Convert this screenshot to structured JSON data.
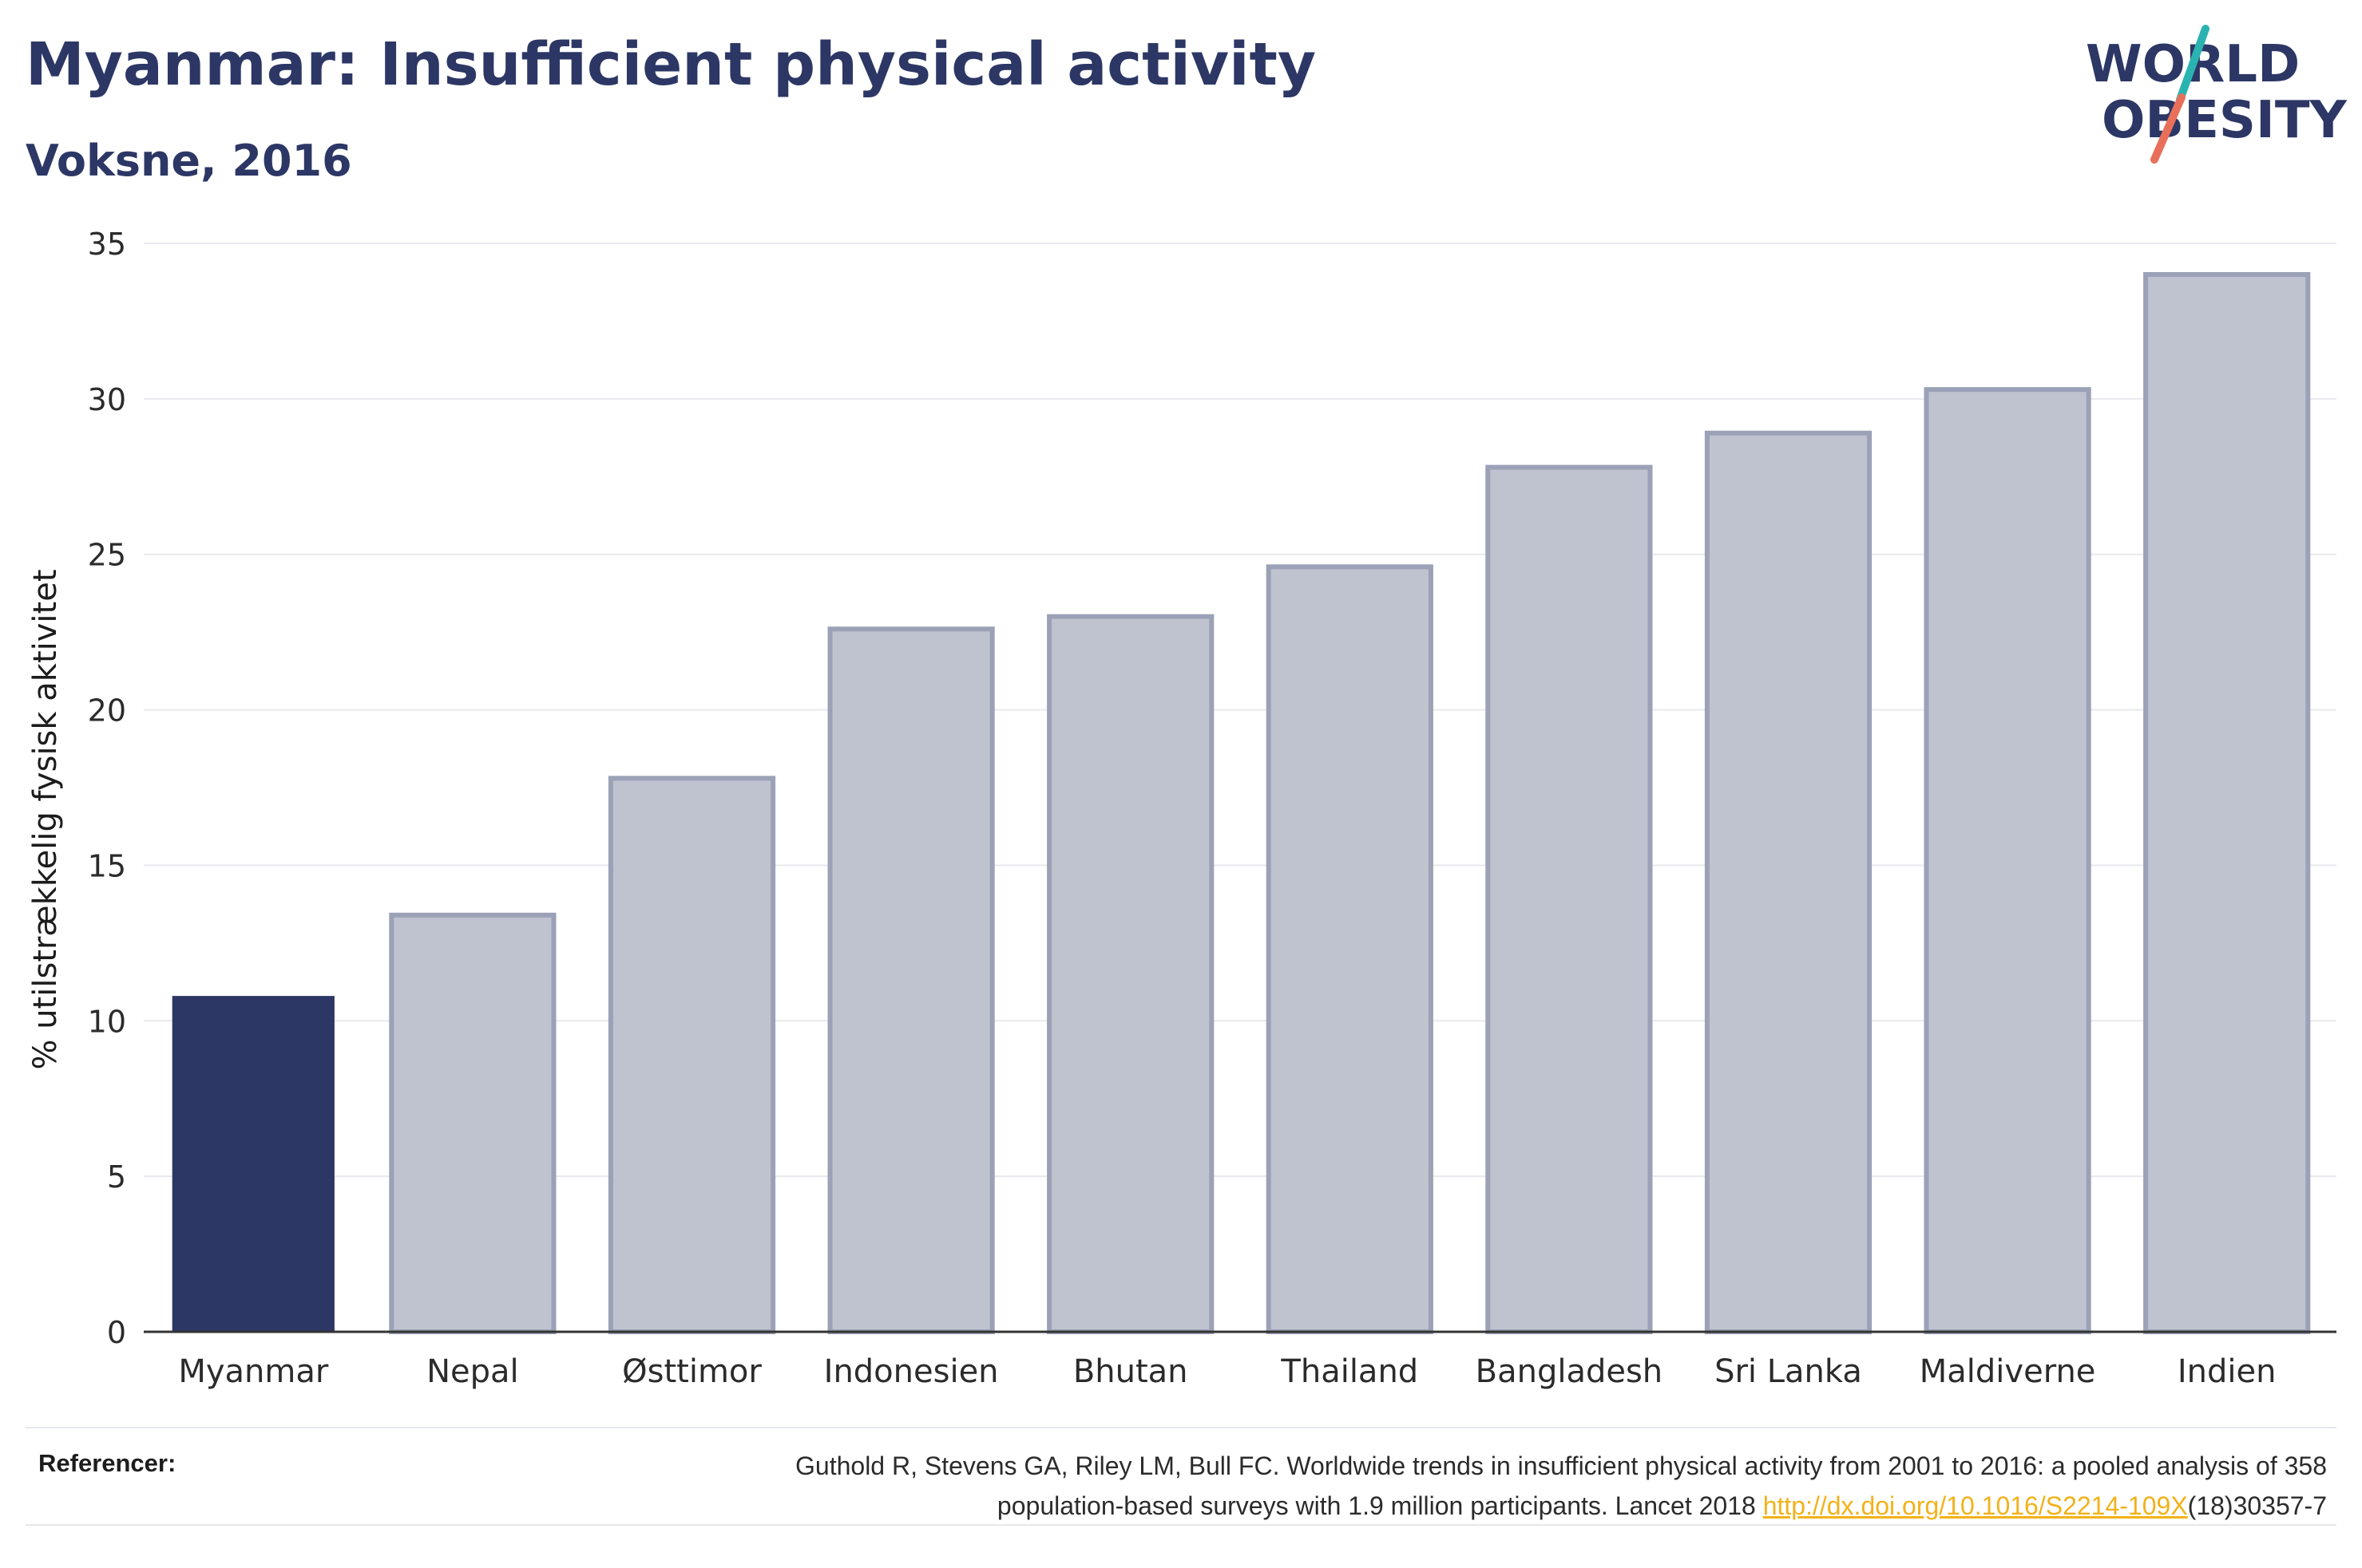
{
  "header": {
    "title": "Myanmar: Insufficient physical activity",
    "subtitle": "Voksne, 2016"
  },
  "logo": {
    "line1": "WORLD",
    "line2": "OBESITY",
    "colors": {
      "text": "#2c3765",
      "slash_teal": "#2ab3b1",
      "slash_red": "#e8705a"
    }
  },
  "chart_data": {
    "type": "bar",
    "title": "Myanmar: Insufficient physical activity",
    "subtitle": "Voksne, 2016",
    "xlabel": "",
    "ylabel": "% utilstrækkelig fysisk aktivitet",
    "ylim": [
      0,
      35
    ],
    "yticks": [
      0,
      5,
      10,
      15,
      20,
      25,
      30,
      35
    ],
    "grid": true,
    "categories": [
      "Myanmar",
      "Nepal",
      "Østtimor",
      "Indonesien",
      "Bhutan",
      "Thailand",
      "Bangladesh",
      "Sri Lanka",
      "Maldiverne",
      "Indien"
    ],
    "values": [
      10.8,
      13.4,
      17.8,
      22.6,
      23.0,
      24.6,
      27.8,
      28.9,
      30.3,
      34.0
    ],
    "highlight": "Myanmar",
    "colors": {
      "highlight": "#2c3765",
      "bar_fill": "#bfc3cf",
      "bar_stroke": "#9ba1b6",
      "grid": "#e8e9ee",
      "axis": "#333333",
      "tick_text": "#2b2b2b"
    }
  },
  "footer": {
    "label": "Referencer:",
    "reference_text_1": "Guthold R, Stevens GA, Riley LM, Bull FC. Worldwide trends in insufficient physical activity from 2001 to 2016: a pooled analysis of 358",
    "reference_text_2": "population-based surveys with 1.9 million participants. Lancet 2018 ",
    "reference_link": "http://dx.doi.org/10.1016/S2214-109X",
    "reference_text_3": "(18)30357-7"
  }
}
